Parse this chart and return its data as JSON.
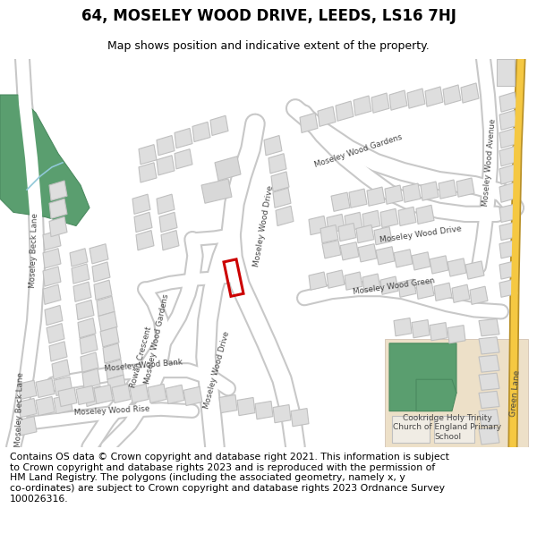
{
  "title": "64, MOSELEY WOOD DRIVE, LEEDS, LS16 7HJ",
  "subtitle": "Map shows position and indicative extent of the property.",
  "footer": "Contains OS data © Crown copyright and database right 2021. This information is subject\nto Crown copyright and database rights 2023 and is reproduced with the permission of\nHM Land Registry. The polygons (including the associated geometry, namely x, y\nco-ordinates) are subject to Crown copyright and database rights 2023 Ordnance Survey\n100026316.",
  "map_bg": "#f2f2f2",
  "road_color": "#ffffff",
  "road_outline": "#c8c8c8",
  "building_color": "#dedede",
  "building_outline": "#c0c0c0",
  "green_color": "#5a9e6f",
  "property_color": "#cc0000",
  "yellow_road_outline": "#c8a830",
  "yellow_road": "#f5c842",
  "school_bg": "#ede0c8",
  "title_fontsize": 12,
  "subtitle_fontsize": 9,
  "footer_fontsize": 7.8,
  "label_color": "#444444",
  "label_fontsize": 6.5
}
